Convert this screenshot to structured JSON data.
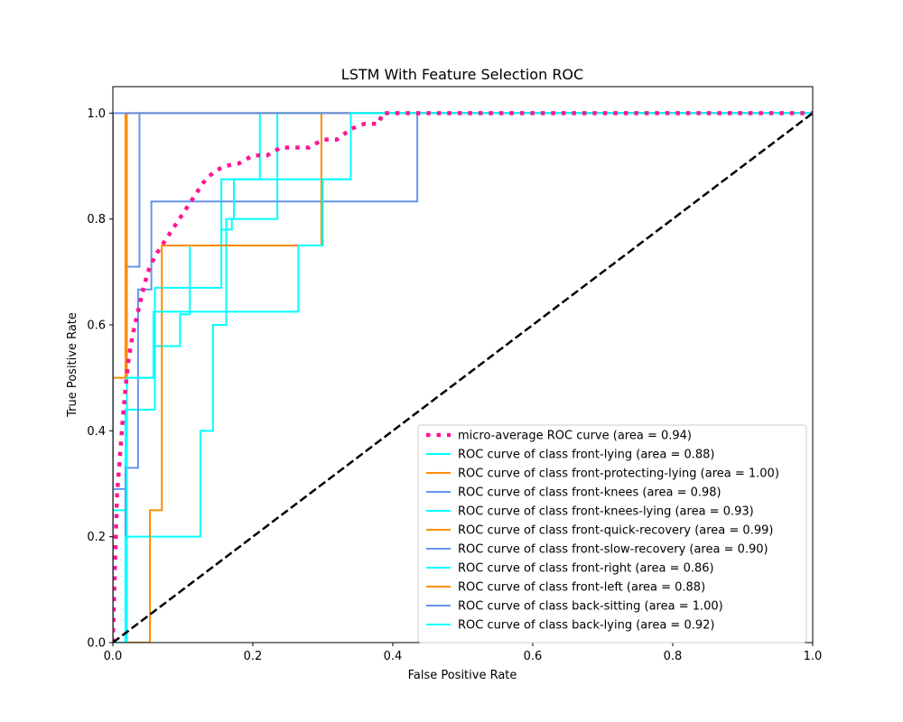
{
  "chart_data": {
    "type": "line",
    "title": "LSTM With Feature Selection ROC",
    "xlabel": "False Positive Rate",
    "ylabel": "True Positive Rate",
    "xlim": [
      0.0,
      1.0
    ],
    "ylim": [
      0.0,
      1.05
    ],
    "xticks": [
      "0.0",
      "0.2",
      "0.4",
      "0.6",
      "0.8",
      "1.0"
    ],
    "yticks": [
      "0.0",
      "0.2",
      "0.4",
      "0.6",
      "0.8",
      "1.0"
    ],
    "grid": false,
    "legend_position": "lower-right",
    "series": [
      {
        "name": "micro-average ROC curve (area = 0.94)",
        "color": "#ff1493",
        "style": "dotted-thick",
        "x": [
          0,
          0.003,
          0.006,
          0.01,
          0.014,
          0.018,
          0.022,
          0.028,
          0.035,
          0.042,
          0.05,
          0.06,
          0.07,
          0.08,
          0.09,
          0.1,
          0.11,
          0.12,
          0.13,
          0.145,
          0.16,
          0.18,
          0.2,
          0.22,
          0.24,
          0.26,
          0.28,
          0.3,
          0.32,
          0.34,
          0.36,
          0.38,
          0.385,
          0.4,
          0.5,
          0.6,
          0.7,
          0.8,
          0.9,
          1.0
        ],
        "y": [
          0,
          0.15,
          0.28,
          0.35,
          0.42,
          0.48,
          0.53,
          0.58,
          0.62,
          0.66,
          0.7,
          0.73,
          0.75,
          0.77,
          0.79,
          0.81,
          0.83,
          0.85,
          0.87,
          0.89,
          0.9,
          0.905,
          0.92,
          0.92,
          0.935,
          0.935,
          0.935,
          0.95,
          0.95,
          0.97,
          0.98,
          0.98,
          1.0,
          1.0,
          1.0,
          1.0,
          1.0,
          1.0,
          1.0,
          1.0
        ]
      },
      {
        "name": "ROC curve of class front-lying (area = 0.88)",
        "color": "#00ffff",
        "style": "steps",
        "x": [
          0,
          0.0,
          0.02,
          0.02,
          0.06,
          0.06,
          0.096,
          0.096,
          0.11,
          0.11,
          0.155,
          0.155,
          0.17,
          0.17,
          0.21,
          0.21,
          1.0
        ],
        "y": [
          0,
          0.25,
          0.25,
          0.5,
          0.5,
          0.56,
          0.56,
          0.62,
          0.62,
          0.75,
          0.75,
          0.875,
          0.875,
          0.875,
          0.875,
          1.0,
          1.0
        ]
      },
      {
        "name": "ROC curve of class front-protecting-lying (area = 1.00)",
        "color": "#ff8c00",
        "style": "steps",
        "x": [
          0,
          0.0,
          0.018,
          0.018,
          1.0
        ],
        "y": [
          0,
          0.5,
          0.5,
          1.0,
          1.0
        ]
      },
      {
        "name": "ROC curve of class front-knees (area = 0.98)",
        "color": "#6495ed",
        "style": "steps",
        "x": [
          0,
          0.0,
          0.02,
          0.02,
          0.038,
          0.038,
          1.0
        ],
        "y": [
          0,
          0.29,
          0.29,
          0.71,
          0.71,
          1.0,
          1.0
        ]
      },
      {
        "name": "ROC curve of class front-knees-lying (area = 0.93)",
        "color": "#00ffff",
        "style": "steps",
        "x": [
          0,
          0.018,
          0.018,
          0.06,
          0.06,
          0.155,
          0.155,
          0.17,
          0.17,
          0.235,
          0.235,
          1.0
        ],
        "y": [
          0,
          0.0,
          0.44,
          0.44,
          0.67,
          0.67,
          0.78,
          0.78,
          0.8,
          0.8,
          1.0,
          1.0
        ]
      },
      {
        "name": "ROC curve of class front-quick-recovery (area = 0.99)",
        "color": "#ff8c00",
        "style": "steps",
        "x": [
          0,
          0.02,
          0.02,
          1.0
        ],
        "y": [
          0,
          0.0,
          1.0,
          1.0
        ]
      },
      {
        "name": "ROC curve of class front-slow-recovery (area = 0.90)",
        "color": "#6495ed",
        "style": "steps",
        "x": [
          0,
          0.018,
          0.018,
          0.036,
          0.036,
          0.055,
          0.055,
          0.435,
          0.435,
          1.0
        ],
        "y": [
          0,
          0.0,
          0.33,
          0.33,
          0.667,
          0.667,
          0.833,
          0.833,
          1.0,
          1.0
        ]
      },
      {
        "name": "ROC curve of class front-right (area = 0.86)",
        "color": "#00ffff",
        "style": "steps",
        "x": [
          0,
          0.018,
          0.018,
          0.125,
          0.125,
          0.143,
          0.143,
          0.162,
          0.162,
          0.173,
          0.173,
          0.305,
          0.305,
          0.34,
          0.34,
          1.0
        ],
        "y": [
          0,
          0.0,
          0.2,
          0.2,
          0.4,
          0.4,
          0.6,
          0.6,
          0.8,
          0.8,
          0.875,
          0.875,
          0.875,
          0.875,
          1.0,
          1.0
        ]
      },
      {
        "name": "ROC curve of class front-left (area = 0.88)",
        "color": "#ff8c00",
        "style": "steps",
        "x": [
          0,
          0.053,
          0.053,
          0.07,
          0.07,
          0.073,
          0.073,
          0.298,
          0.298,
          1.0
        ],
        "y": [
          0,
          0.0,
          0.25,
          0.25,
          0.75,
          0.75,
          0.75,
          0.75,
          1.0,
          1.0
        ]
      },
      {
        "name": "ROC curve of class back-sitting (area = 1.00)",
        "color": "#6495ed",
        "style": "steps",
        "x": [
          0,
          0.0,
          1.0
        ],
        "y": [
          0,
          1.0,
          1.0
        ]
      },
      {
        "name": "ROC curve of class back-lying (area = 0.92)",
        "color": "#00ffff",
        "style": "steps",
        "x": [
          0,
          0.02,
          0.02,
          0.058,
          0.058,
          0.265,
          0.265,
          0.3,
          0.3,
          0.34,
          0.34,
          1.0
        ],
        "y": [
          0,
          0.0,
          0.5,
          0.5,
          0.625,
          0.625,
          0.75,
          0.75,
          0.875,
          0.875,
          1.0,
          1.0
        ]
      }
    ],
    "reference_line": {
      "x": [
        0,
        1
      ],
      "y": [
        0,
        1
      ],
      "color": "#000000",
      "style": "dashed"
    }
  }
}
